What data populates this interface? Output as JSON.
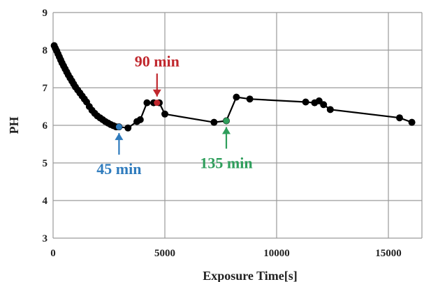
{
  "chart_data": {
    "type": "line",
    "xlabel": "Exposure Time[s]",
    "ylabel": "PH",
    "xlim": [
      0,
      16500
    ],
    "ylim": [
      3,
      9
    ],
    "x_ticks": [
      "0",
      "5000",
      "10000",
      "15000"
    ],
    "x_tick_values": [
      0,
      5000,
      10000,
      15000
    ],
    "y_ticks": [
      "3",
      "4",
      "5",
      "6",
      "7",
      "8",
      "9"
    ],
    "y_tick_values": [
      3,
      4,
      5,
      6,
      7,
      8,
      9
    ],
    "grid": true,
    "series": [
      {
        "color": "#000000",
        "x": [
          50,
          100,
          160,
          220,
          280,
          340,
          400,
          470,
          540,
          610,
          680,
          760,
          840,
          920,
          1000,
          1100,
          1200,
          1300,
          1400,
          1500,
          1620,
          1740,
          1860,
          1980,
          2100,
          2220,
          2340,
          2460,
          2580,
          2700,
          2820,
          2950,
          3350,
          3750,
          3900,
          4200,
          4500,
          4750,
          5000,
          7200,
          7750,
          8200,
          8800,
          11300,
          11700,
          11900,
          12100,
          12400,
          15500,
          16050
        ],
        "y": [
          8.12,
          8.05,
          7.98,
          7.9,
          7.82,
          7.74,
          7.66,
          7.58,
          7.5,
          7.42,
          7.34,
          7.26,
          7.18,
          7.1,
          7.02,
          6.94,
          6.86,
          6.78,
          6.7,
          6.62,
          6.5,
          6.4,
          6.32,
          6.25,
          6.2,
          6.15,
          6.1,
          6.06,
          6.02,
          5.99,
          5.96,
          5.96,
          5.93,
          6.1,
          6.15,
          6.6,
          6.6,
          6.6,
          6.3,
          6.08,
          6.12,
          6.75,
          6.7,
          6.62,
          6.6,
          6.65,
          6.55,
          6.42,
          6.2,
          6.08
        ]
      }
    ],
    "highlights": [
      {
        "label": "45 min",
        "x": 2950,
        "y": 5.96,
        "color": "#2e7bbd",
        "position": "below"
      },
      {
        "label": "90 min",
        "x": 4650,
        "y": 6.6,
        "color": "#c0272d",
        "position": "above"
      },
      {
        "label": "135 min",
        "x": 7750,
        "y": 6.12,
        "color": "#2e9e5b",
        "position": "below"
      }
    ]
  }
}
